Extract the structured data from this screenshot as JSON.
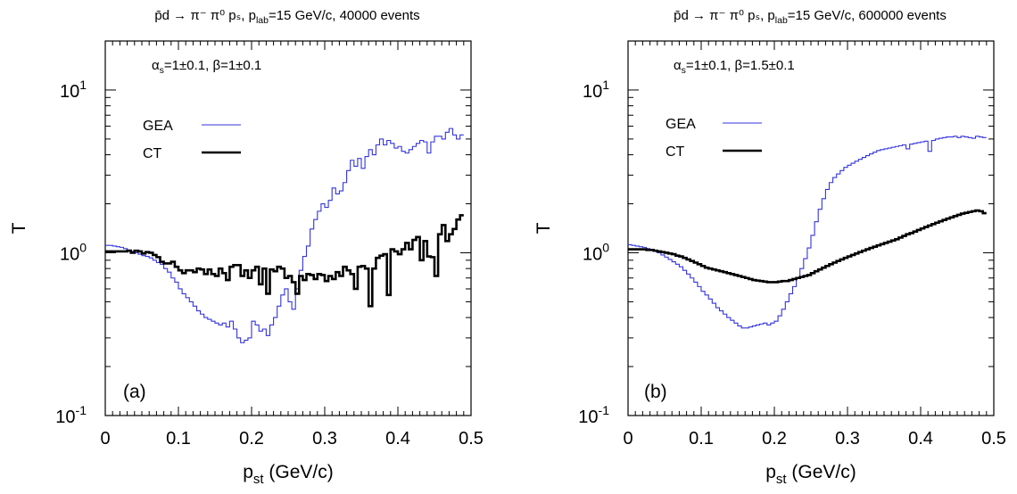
{
  "colors": {
    "gea": "#3333dd",
    "ct": "#000000",
    "frame": "#000000",
    "background": "#ffffff"
  },
  "chart_data": [
    {
      "type": "line",
      "step": true,
      "title": {
        "reaction": "p̄d → π⁻ π⁰ pₛ, ",
        "plab": "p",
        "plab_sub": "lab",
        "rest": "=15 GeV/c, 40000 events"
      },
      "params": {
        "a": "α",
        "a_sub": "s",
        "rest": "=1±0.1, β=1±0.1"
      },
      "panel_label": "(a)",
      "xlabel": {
        "main": "p",
        "sub": "st",
        "rest": " (GeV/c)"
      },
      "ylabel": "T",
      "yscale": "log",
      "xlim": [
        0,
        0.5
      ],
      "ylim": [
        0.1,
        20
      ],
      "xticks": [
        "0",
        "0.1",
        "0.2",
        "0.3",
        "0.4",
        "0.5"
      ],
      "yticks": [
        {
          "base": "10",
          "exp": "-1"
        },
        {
          "base": "10",
          "exp": "0"
        },
        {
          "base": "10",
          "exp": "1"
        }
      ],
      "legend_position": "upper-left",
      "bin_width": 0.005,
      "x_start": 0,
      "series": [
        {
          "name": "GEA",
          "style": "thin",
          "values": [
            1.11,
            1.11,
            1.1,
            1.09,
            1.08,
            1.06,
            1.04,
            1.02,
            1.0,
            0.98,
            0.96,
            0.95,
            0.93,
            0.9,
            0.87,
            0.85,
            0.8,
            0.76,
            0.7,
            0.66,
            0.6,
            0.56,
            0.53,
            0.5,
            0.47,
            0.44,
            0.42,
            0.4,
            0.39,
            0.38,
            0.37,
            0.36,
            0.37,
            0.35,
            0.38,
            0.34,
            0.3,
            0.28,
            0.29,
            0.3,
            0.38,
            0.36,
            0.33,
            0.34,
            0.31,
            0.36,
            0.4,
            0.47,
            0.55,
            0.6,
            0.5,
            0.45,
            0.6,
            0.78,
            0.95,
            1.1,
            1.4,
            1.6,
            1.8,
            2.0,
            1.9,
            2.1,
            2.5,
            2.3,
            2.4,
            2.7,
            3.2,
            3.7,
            3.4,
            3.8,
            3.3,
            3.9,
            4.3,
            4.0,
            4.6,
            5.0,
            4.6,
            4.9,
            4.7,
            4.4,
            4.5,
            4.2,
            4.1,
            4.3,
            4.5,
            4.7,
            4.9,
            4.8,
            4.1,
            4.8,
            5.2,
            5.2,
            5.0,
            5.5,
            5.8,
            5.3,
            5.0,
            5.3
          ]
        },
        {
          "name": "CT",
          "style": "thick",
          "values": [
            1.02,
            1.02,
            1.02,
            1.02,
            1.02,
            1.02,
            1.03,
            1.0,
            1.03,
            1.02,
            0.99,
            1.01,
            1.0,
            0.97,
            0.94,
            0.88,
            0.86,
            0.86,
            0.88,
            0.82,
            0.78,
            0.75,
            0.78,
            0.78,
            0.76,
            0.8,
            0.79,
            0.74,
            0.79,
            0.74,
            0.72,
            0.8,
            0.75,
            0.68,
            0.82,
            0.84,
            0.84,
            0.72,
            0.78,
            0.7,
            0.78,
            0.82,
            0.64,
            0.8,
            0.56,
            0.79,
            0.77,
            0.82,
            0.8,
            0.7,
            0.72,
            0.66,
            0.56,
            0.72,
            0.68,
            0.74,
            0.73,
            0.69,
            0.74,
            0.73,
            0.67,
            0.72,
            0.69,
            0.76,
            0.72,
            0.82,
            0.78,
            0.74,
            0.6,
            0.82,
            0.83,
            0.8,
            0.47,
            0.8,
            0.93,
            0.96,
            0.98,
            0.55,
            1.05,
            1.02,
            0.98,
            1.05,
            1.15,
            1.05,
            1.2,
            1.25,
            0.9,
            1.18,
            0.95,
            0.94,
            0.72,
            1.3,
            1.48,
            1.18,
            1.3,
            1.4,
            1.6,
            1.7
          ]
        }
      ]
    },
    {
      "type": "line",
      "step": true,
      "title": {
        "reaction": "p̄d → π⁻ π⁰ pₛ, ",
        "plab": "p",
        "plab_sub": "lab",
        "rest": "=15 GeV/c, 600000 events"
      },
      "params": {
        "a": "α",
        "a_sub": "s",
        "rest": "=1±0.1, β=1.5±0.1"
      },
      "panel_label": "(b)",
      "xlabel": {
        "main": "p",
        "sub": "st",
        "rest": " (GeV/c)"
      },
      "ylabel": "T",
      "yscale": "log",
      "xlim": [
        0,
        0.5
      ],
      "ylim": [
        0.1,
        20
      ],
      "xticks": [
        "0",
        "0.1",
        "0.2",
        "0.3",
        "0.4",
        "0.5"
      ],
      "yticks": [
        {
          "base": "10",
          "exp": "-1"
        },
        {
          "base": "10",
          "exp": "0"
        },
        {
          "base": "10",
          "exp": "1"
        }
      ],
      "legend_position": "upper-left",
      "bin_width": 0.005,
      "x_start": 0,
      "series": [
        {
          "name": "GEA",
          "style": "thin",
          "values": [
            1.12,
            1.11,
            1.1,
            1.09,
            1.08,
            1.06,
            1.04,
            1.02,
            1.0,
            0.97,
            0.94,
            0.91,
            0.88,
            0.85,
            0.82,
            0.78,
            0.74,
            0.7,
            0.66,
            0.62,
            0.58,
            0.55,
            0.52,
            0.49,
            0.46,
            0.44,
            0.42,
            0.4,
            0.385,
            0.37,
            0.355,
            0.345,
            0.345,
            0.35,
            0.355,
            0.36,
            0.365,
            0.37,
            0.36,
            0.37,
            0.38,
            0.41,
            0.45,
            0.5,
            0.56,
            0.62,
            0.7,
            0.8,
            0.92,
            1.07,
            1.28,
            1.55,
            1.85,
            2.15,
            2.45,
            2.7,
            2.9,
            3.05,
            3.2,
            3.35,
            3.45,
            3.55,
            3.65,
            3.75,
            3.85,
            3.95,
            4.05,
            4.15,
            4.25,
            4.3,
            4.35,
            4.4,
            4.45,
            4.5,
            4.55,
            4.6,
            4.35,
            4.65,
            4.7,
            4.75,
            4.8,
            4.85,
            4.2,
            4.9,
            5.0,
            5.05,
            5.1,
            5.15,
            5.15,
            5.2,
            5.1,
            5.2,
            5.15,
            5.1,
            5.05,
            5.2,
            5.15,
            5.1
          ]
        },
        {
          "name": "CT",
          "style": "thick",
          "values": [
            1.05,
            1.05,
            1.05,
            1.05,
            1.05,
            1.04,
            1.04,
            1.03,
            1.02,
            1.01,
            1.0,
            0.99,
            0.98,
            0.96,
            0.95,
            0.93,
            0.91,
            0.89,
            0.87,
            0.85,
            0.83,
            0.81,
            0.8,
            0.79,
            0.78,
            0.77,
            0.76,
            0.75,
            0.74,
            0.73,
            0.72,
            0.71,
            0.7,
            0.69,
            0.68,
            0.675,
            0.67,
            0.665,
            0.66,
            0.66,
            0.66,
            0.665,
            0.67,
            0.67,
            0.68,
            0.69,
            0.7,
            0.71,
            0.72,
            0.73,
            0.75,
            0.77,
            0.79,
            0.81,
            0.83,
            0.85,
            0.87,
            0.89,
            0.91,
            0.93,
            0.95,
            0.97,
            0.99,
            1.01,
            1.03,
            1.05,
            1.07,
            1.09,
            1.11,
            1.13,
            1.15,
            1.17,
            1.19,
            1.21,
            1.24,
            1.27,
            1.3,
            1.32,
            1.35,
            1.38,
            1.41,
            1.44,
            1.47,
            1.5,
            1.53,
            1.56,
            1.59,
            1.62,
            1.65,
            1.68,
            1.71,
            1.74,
            1.76,
            1.78,
            1.8,
            1.82,
            1.8,
            1.75
          ]
        }
      ]
    }
  ]
}
